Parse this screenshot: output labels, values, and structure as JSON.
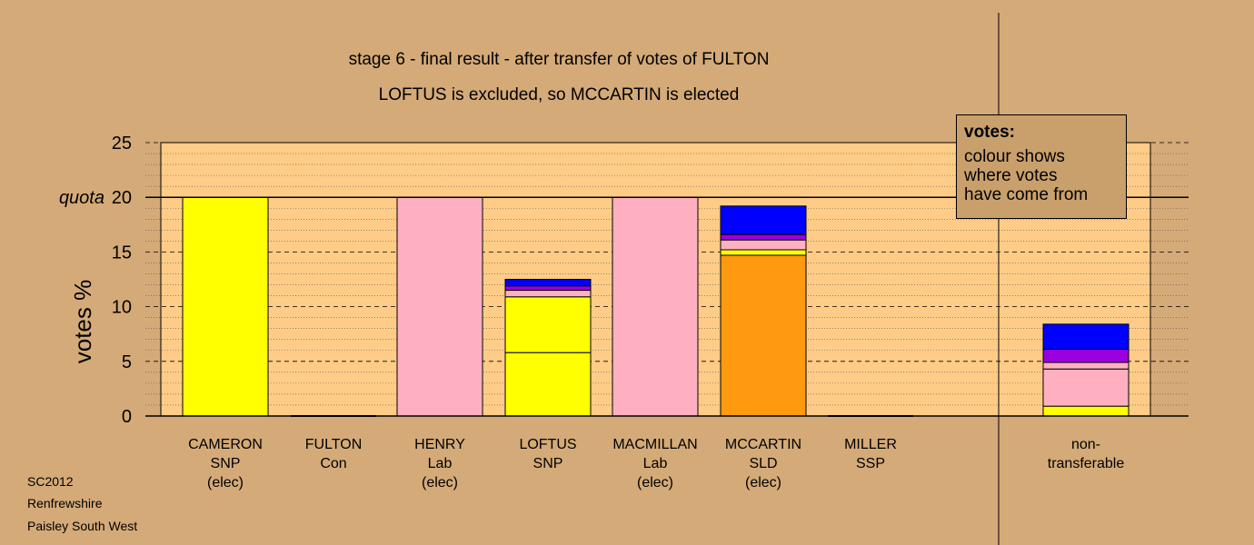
{
  "chart_data": {
    "type": "bar",
    "title": "stage 6 - final result - after transfer of votes of FULTON",
    "subtitle": "LOFTUS is excluded, so MCCARTIN is elected",
    "ylabel": "votes %",
    "ylim": [
      0,
      25
    ],
    "yticks": [
      "0",
      "5",
      "10",
      "15",
      "20",
      "25"
    ],
    "quota": {
      "label": "quota",
      "value": 20
    },
    "grid": true,
    "candidates": [
      {
        "name": "CAMERON",
        "party": "SNP",
        "status": "(elec)",
        "segments": [
          {
            "value": 20.0,
            "color": "#ffff00"
          }
        ]
      },
      {
        "name": "FULTON",
        "party": "Con",
        "status": "",
        "segments": []
      },
      {
        "name": "HENRY",
        "party": "Lab",
        "status": "(elec)",
        "segments": [
          {
            "value": 20.0,
            "color": "#ffb0c0"
          }
        ]
      },
      {
        "name": "LOFTUS",
        "party": "SNP",
        "status": "",
        "segments": [
          {
            "value": 5.8,
            "color": "#ffff00"
          },
          {
            "value": 5.1,
            "color": "#ffff00"
          },
          {
            "value": 0.6,
            "color": "#ffb0c0"
          },
          {
            "value": 0.4,
            "color": "#9900dd"
          },
          {
            "value": 0.6,
            "color": "#0000ff"
          }
        ]
      },
      {
        "name": "MACMILLAN",
        "party": "Lab",
        "status": "(elec)",
        "segments": [
          {
            "value": 20.0,
            "color": "#ffb0c0"
          }
        ]
      },
      {
        "name": "MCCARTIN",
        "party": "SLD",
        "status": "(elec)",
        "segments": [
          {
            "value": 14.7,
            "color": "#ff9910"
          },
          {
            "value": 0.5,
            "color": "#ffff00"
          },
          {
            "value": 0.9,
            "color": "#ffb0c0"
          },
          {
            "value": 0.5,
            "color": "#9900dd"
          },
          {
            "value": 2.6,
            "color": "#0000ff"
          }
        ]
      },
      {
        "name": "MILLER",
        "party": "SSP",
        "status": "",
        "segments": []
      },
      {
        "name": "non-",
        "party": "transferable",
        "status": "",
        "segments": [
          {
            "value": 0.9,
            "color": "#ffff00"
          },
          {
            "value": 3.4,
            "color": "#ffb0c0"
          },
          {
            "value": 0.6,
            "color": "#ffb0c0"
          },
          {
            "value": 1.2,
            "color": "#9900dd"
          },
          {
            "value": 2.3,
            "color": "#0000ff"
          }
        ]
      }
    ],
    "legend": {
      "title": "votes:",
      "lines": [
        "colour shows",
        "where votes",
        "have come from"
      ],
      "position": "top-right"
    }
  },
  "footer": {
    "line1": "SC2012",
    "line2": "Renfrewshire",
    "line3": "Paisley South West"
  },
  "colors": {
    "background": "#d4aa78",
    "plot_area": "#ffcc88"
  }
}
